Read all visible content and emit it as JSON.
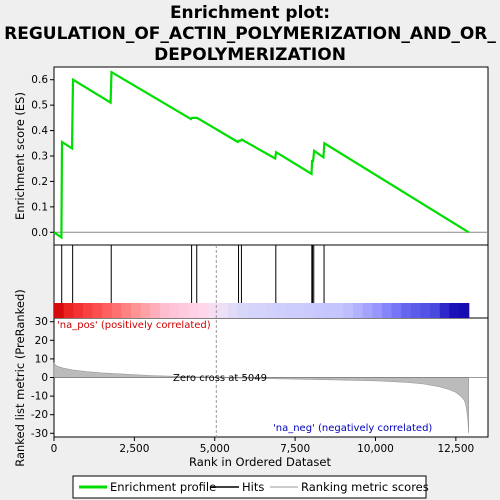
{
  "title_lines": [
    "Enrichment plot:",
    "REGULATION_OF_ACTIN_POLYMERIZATION_AND_OR_",
    "DEPOLYMERIZATION"
  ],
  "colors": {
    "es_line": "#00dd00",
    "hit": "#000000",
    "metric_fill": "#bbbbbb",
    "zero_line": "#888888"
  },
  "chart_data": [
    {
      "type": "line",
      "panel": "enrichment-profile",
      "ylabel": "Enrichment score (ES)",
      "ylim": [
        -0.05,
        0.65
      ],
      "yticks": [
        0.0,
        0.1,
        0.2,
        0.3,
        0.4,
        0.5,
        0.6
      ],
      "ytick_labels": [
        "0.0",
        "0.1",
        "0.2",
        "0.3",
        "0.4",
        "0.5",
        "0.6"
      ],
      "xlim": [
        0,
        13500
      ],
      "series": [
        {
          "name": "Enrichment profile",
          "x": [
            0,
            230,
            250,
            560,
            590,
            1760,
            1790,
            4260,
            4290,
            4420,
            4450,
            5720,
            5750,
            5810,
            5840,
            6880,
            6910,
            8010,
            8030,
            8060,
            8090,
            8380,
            8410,
            12900
          ],
          "y": [
            0.0,
            -0.02,
            0.355,
            0.33,
            0.6,
            0.51,
            0.63,
            0.445,
            0.45,
            0.45,
            0.45,
            0.355,
            0.36,
            0.36,
            0.365,
            0.29,
            0.315,
            0.23,
            0.28,
            0.28,
            0.32,
            0.295,
            0.35,
            0.0
          ]
        }
      ]
    },
    {
      "type": "scatter",
      "panel": "hits",
      "series": [
        {
          "name": "Hits",
          "x": [
            240,
            580,
            1780,
            4280,
            4440,
            5740,
            5830,
            6900,
            8020,
            8040,
            8080,
            8400
          ]
        }
      ]
    },
    {
      "type": "heatmap",
      "panel": "rank-color-bar",
      "x_range": [
        0,
        12900
      ]
    },
    {
      "type": "area",
      "panel": "ranked-list-metric",
      "ylabel": "Ranked list metric (PreRanked)",
      "xlabel": "Rank in Ordered Dataset",
      "xlim": [
        0,
        13500
      ],
      "ylim": [
        -32,
        32
      ],
      "yticks": [
        30,
        20,
        10,
        0,
        -10,
        -20,
        -30
      ],
      "ytick_labels": [
        "30",
        "20",
        "10",
        "0",
        "-10",
        "-20",
        "-30"
      ],
      "xticks": [
        0,
        2500,
        5000,
        7500,
        10000,
        12500
      ],
      "xtick_labels": [
        "0",
        "2,500",
        "5,000",
        "7,500",
        "10,000",
        "12,500"
      ],
      "series": [
        {
          "name": "Ranking metric scores",
          "x": [
            0,
            30,
            100,
            300,
            600,
            1000,
            1500,
            2000,
            2500,
            3000,
            3500,
            4000,
            4500,
            5049,
            5500,
            6000,
            7000,
            8000,
            9000,
            10000,
            10500,
            11000,
            11500,
            12000,
            12300,
            12500,
            12650,
            12750,
            12800,
            12830,
            12870,
            12900
          ],
          "y": [
            8,
            7,
            6,
            5,
            4,
            3.2,
            2.5,
            2,
            1.5,
            1.1,
            0.8,
            0.5,
            0.3,
            0,
            -0.2,
            -0.4,
            -0.7,
            -1.0,
            -1.4,
            -1.8,
            -2.2,
            -2.7,
            -3.5,
            -5,
            -6.5,
            -8,
            -10,
            -12,
            -14,
            -17,
            -22,
            -30
          ]
        }
      ],
      "annotations": {
        "pos_label": "'na_pos' (positively correlated)",
        "neg_label": "'na_neg' (negatively correlated)",
        "zero_cross": "Zero cross at 5049",
        "zero_cross_x": 5049
      }
    }
  ],
  "legend": [
    {
      "label": "Enrichment profile",
      "color": "#00dd00"
    },
    {
      "label": "Hits",
      "color": "#000000"
    },
    {
      "label": "Ranking metric scores",
      "color": "#bbbbbb"
    }
  ]
}
